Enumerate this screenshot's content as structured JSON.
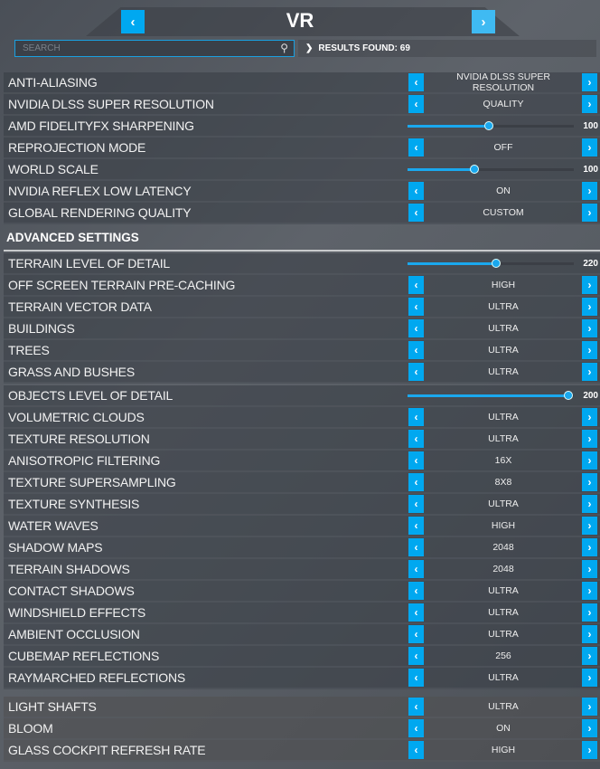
{
  "header": {
    "title": "VR",
    "prev_icon": "chevron-left-icon",
    "next_icon": "chevron-right-icon"
  },
  "search": {
    "placeholder": "SEARCH",
    "icon": "search-icon"
  },
  "results": {
    "text": "RESULTS FOUND: 69"
  },
  "accent": "#00a8f0",
  "groups": [
    {
      "rows": [
        {
          "label": "ANTI-ALIASING",
          "type": "select",
          "value": "NVIDIA DLSS SUPER RESOLUTION"
        },
        {
          "label": "NVIDIA DLSS SUPER RESOLUTION",
          "type": "select",
          "value": "QUALITY"
        },
        {
          "label": "AMD FIDELITYFX SHARPENING",
          "type": "slider",
          "value": "100",
          "percent": 49
        },
        {
          "label": "REPROJECTION MODE",
          "type": "select",
          "value": "OFF"
        },
        {
          "label": "WORLD SCALE",
          "type": "slider",
          "value": "100",
          "percent": 40
        },
        {
          "label": "NVIDIA REFLEX LOW LATENCY",
          "type": "select",
          "value": "ON"
        },
        {
          "label": "GLOBAL RENDERING QUALITY",
          "type": "select",
          "value": "CUSTOM"
        }
      ]
    },
    {
      "section": "ADVANCED SETTINGS",
      "rows": [
        {
          "label": "TERRAIN LEVEL OF DETAIL",
          "type": "slider",
          "value": "220",
          "percent": 53
        },
        {
          "label": "OFF SCREEN TERRAIN PRE-CACHING",
          "type": "select",
          "value": "HIGH"
        },
        {
          "label": "TERRAIN VECTOR DATA",
          "type": "select",
          "value": "ULTRA"
        },
        {
          "label": "BUILDINGS",
          "type": "select",
          "value": "ULTRA"
        },
        {
          "label": "TREES",
          "type": "select",
          "value": "ULTRA"
        },
        {
          "label": "GRASS AND BUSHES",
          "type": "select",
          "value": "ULTRA"
        }
      ]
    },
    {
      "rows": [
        {
          "label": "OBJECTS LEVEL OF DETAIL",
          "type": "slider",
          "value": "200",
          "percent": 97
        },
        {
          "label": "VOLUMETRIC CLOUDS",
          "type": "select",
          "value": "ULTRA"
        },
        {
          "label": "TEXTURE RESOLUTION",
          "type": "select",
          "value": "ULTRA"
        },
        {
          "label": "ANISOTROPIC FILTERING",
          "type": "select",
          "value": "16X"
        },
        {
          "label": "TEXTURE SUPERSAMPLING",
          "type": "select",
          "value": "8X8"
        },
        {
          "label": "TEXTURE SYNTHESIS",
          "type": "select",
          "value": "ULTRA"
        },
        {
          "label": "WATER WAVES",
          "type": "select",
          "value": "HIGH"
        },
        {
          "label": "SHADOW MAPS",
          "type": "select",
          "value": "2048"
        },
        {
          "label": "TERRAIN SHADOWS",
          "type": "select",
          "value": "2048"
        },
        {
          "label": "CONTACT SHADOWS",
          "type": "select",
          "value": "ULTRA"
        },
        {
          "label": "WINDSHIELD EFFECTS",
          "type": "select",
          "value": "ULTRA"
        },
        {
          "label": "AMBIENT OCCLUSION",
          "type": "select",
          "value": "ULTRA"
        },
        {
          "label": "CUBEMAP REFLECTIONS",
          "type": "select",
          "value": "256"
        },
        {
          "label": "RAYMARCHED REFLECTIONS",
          "type": "select",
          "value": "ULTRA"
        }
      ]
    },
    {
      "lower": true,
      "rows": [
        {
          "label": "LIGHT SHAFTS",
          "type": "select",
          "value": "ULTRA"
        },
        {
          "label": "BLOOM",
          "type": "select",
          "value": "ON"
        },
        {
          "label": "GLASS COCKPIT REFRESH RATE",
          "type": "select",
          "value": "HIGH"
        }
      ]
    }
  ]
}
